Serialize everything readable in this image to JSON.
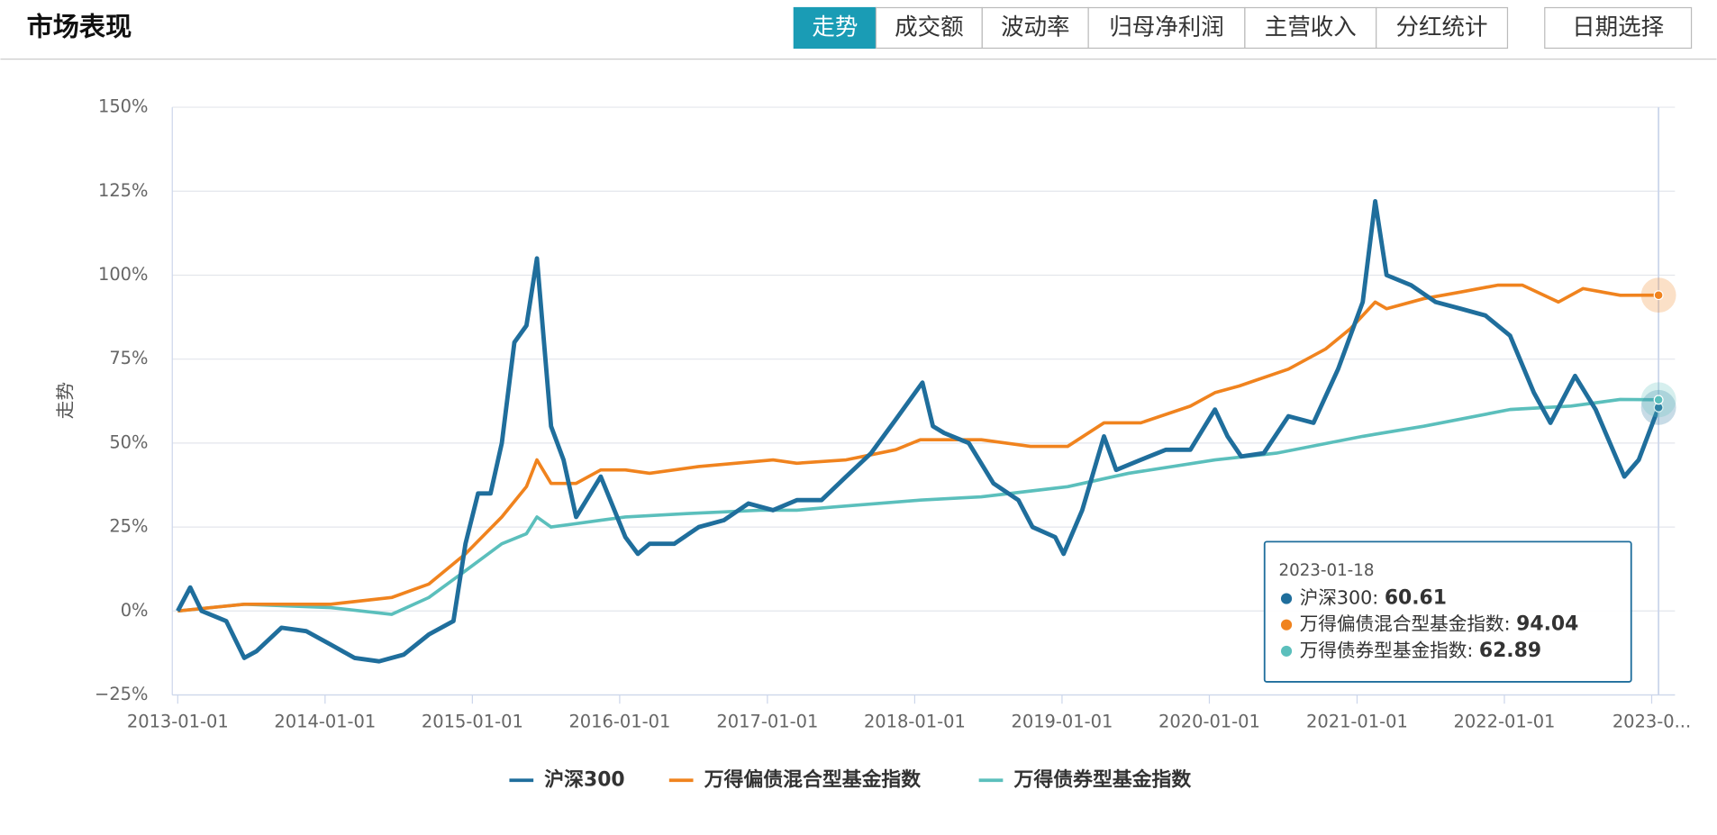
{
  "header": {
    "title": "市场表现",
    "tabs": [
      "走势",
      "成交额",
      "波动率",
      "归母净利润",
      "主营收入",
      "分红统计"
    ],
    "date_button": "日期选择"
  },
  "chart_data": {
    "type": "line",
    "y_label": "走势",
    "ylim": [
      -25,
      150
    ],
    "yticks": [
      {
        "value": -25,
        "label": "−25%"
      },
      {
        "value": 0,
        "label": "0%"
      },
      {
        "value": 25,
        "label": "25%"
      },
      {
        "value": 50,
        "label": "50%"
      },
      {
        "value": 75,
        "label": "75%"
      },
      {
        "value": 100,
        "label": "100%"
      },
      {
        "value": 125,
        "label": "125%"
      },
      {
        "value": 150,
        "label": "150%"
      }
    ],
    "xlim": [
      "2013-01-01",
      "2023-01-18"
    ],
    "xticks": [
      "2013-01-01",
      "2014-01-01",
      "2015-01-01",
      "2016-01-01",
      "2017-01-01",
      "2018-01-01",
      "2019-01-01",
      "2020-01-01",
      "2021-01-01",
      "2022-01-01",
      {
        "value": "2023-01-01",
        "label": "2023-0..."
      }
    ],
    "grid": true,
    "series": [
      {
        "name": "沪深300",
        "color": "#1f6e9c",
        "x": [
          "2013-01-01",
          "2013-02-01",
          "2013-03-01",
          "2013-05-01",
          "2013-06-15",
          "2013-07-15",
          "2013-09-15",
          "2013-11-15",
          "2014-01-15",
          "2014-03-15",
          "2014-05-15",
          "2014-07-15",
          "2014-09-15",
          "2014-11-15",
          "2014-12-15",
          "2015-01-15",
          "2015-02-15",
          "2015-03-15",
          "2015-04-15",
          "2015-05-15",
          "2015-06-10",
          "2015-07-15",
          "2015-08-15",
          "2015-09-15",
          "2015-11-15",
          "2016-01-15",
          "2016-02-15",
          "2016-03-15",
          "2016-05-15",
          "2016-07-15",
          "2016-09-15",
          "2016-11-15",
          "2017-01-15",
          "2017-03-15",
          "2017-05-15",
          "2017-07-15",
          "2017-09-15",
          "2017-11-15",
          "2018-01-20",
          "2018-02-15",
          "2018-03-15",
          "2018-05-15",
          "2018-07-15",
          "2018-09-15",
          "2018-10-20",
          "2018-12-15",
          "2019-01-05",
          "2019-02-20",
          "2019-04-15",
          "2019-05-15",
          "2019-07-15",
          "2019-09-15",
          "2019-11-15",
          "2020-01-15",
          "2020-02-15",
          "2020-03-20",
          "2020-05-15",
          "2020-07-15",
          "2020-09-15",
          "2020-11-15",
          "2021-01-15",
          "2021-02-15",
          "2021-03-15",
          "2021-05-15",
          "2021-07-15",
          "2021-09-15",
          "2021-11-15",
          "2022-01-15",
          "2022-03-15",
          "2022-04-25",
          "2022-06-25",
          "2022-08-15",
          "2022-10-25",
          "2022-11-30",
          "2023-01-18"
        ],
        "values": [
          0,
          7,
          0,
          -3,
          -14,
          -12,
          -5,
          -6,
          -10,
          -14,
          -15,
          -13,
          -7,
          -3,
          20,
          35,
          35,
          50,
          80,
          85,
          105,
          55,
          45,
          28,
          40,
          22,
          17,
          20,
          20,
          25,
          27,
          32,
          30,
          33,
          33,
          40,
          47,
          57,
          68,
          55,
          53,
          50,
          38,
          33,
          25,
          22,
          17,
          30,
          52,
          42,
          45,
          48,
          48,
          60,
          52,
          46,
          47,
          58,
          56,
          72,
          92,
          122,
          100,
          97,
          92,
          90,
          88,
          82,
          65,
          56,
          70,
          60,
          40,
          45,
          60.61
        ]
      },
      {
        "name": "万得偏债混合型基金指数",
        "color": "#f0831e",
        "x": [
          "2013-01-01",
          "2013-06-15",
          "2014-01-15",
          "2014-06-15",
          "2014-09-15",
          "2014-12-15",
          "2015-03-15",
          "2015-05-15",
          "2015-06-10",
          "2015-07-15",
          "2015-09-15",
          "2015-11-15",
          "2016-01-15",
          "2016-03-15",
          "2016-07-15",
          "2017-01-15",
          "2017-03-15",
          "2017-07-15",
          "2017-11-15",
          "2018-01-15",
          "2018-06-15",
          "2018-10-15",
          "2019-01-15",
          "2019-04-15",
          "2019-07-15",
          "2019-11-15",
          "2020-01-15",
          "2020-03-15",
          "2020-07-15",
          "2020-10-15",
          "2020-12-15",
          "2021-02-15",
          "2021-03-15",
          "2021-06-15",
          "2021-09-15",
          "2021-12-15",
          "2022-02-15",
          "2022-05-15",
          "2022-07-15",
          "2022-10-15",
          "2023-01-18"
        ],
        "values": [
          0,
          2,
          2,
          4,
          8,
          17,
          28,
          37,
          45,
          38,
          38,
          42,
          42,
          41,
          43,
          45,
          44,
          45,
          48,
          51,
          51,
          49,
          49,
          56,
          56,
          61,
          65,
          67,
          72,
          78,
          84,
          92,
          90,
          93,
          95,
          97,
          97,
          92,
          96,
          94,
          94.04
        ]
      },
      {
        "name": "万得债券型基金指数",
        "color": "#5bbfbc",
        "x": [
          "2013-01-01",
          "2013-06-15",
          "2014-01-15",
          "2014-06-15",
          "2014-09-15",
          "2014-12-15",
          "2015-03-15",
          "2015-05-15",
          "2015-06-10",
          "2015-07-15",
          "2015-11-15",
          "2016-01-15",
          "2016-06-15",
          "2016-12-15",
          "2017-03-15",
          "2017-06-15",
          "2018-01-15",
          "2018-06-15",
          "2019-01-15",
          "2019-06-15",
          "2020-01-15",
          "2020-06-15",
          "2021-01-15",
          "2021-06-15",
          "2022-01-15",
          "2022-06-15",
          "2022-10-15",
          "2023-01-18"
        ],
        "values": [
          0,
          2,
          1,
          -1,
          4,
          12,
          20,
          23,
          28,
          25,
          27,
          28,
          29,
          30,
          30,
          31,
          33,
          34,
          37,
          41,
          45,
          47,
          52,
          55,
          60,
          61,
          63,
          62.89
        ]
      }
    ],
    "legend": "bottom",
    "tooltip": {
      "date": "2023-01-18",
      "values": [
        60.61,
        94.04,
        62.89
      ]
    }
  }
}
